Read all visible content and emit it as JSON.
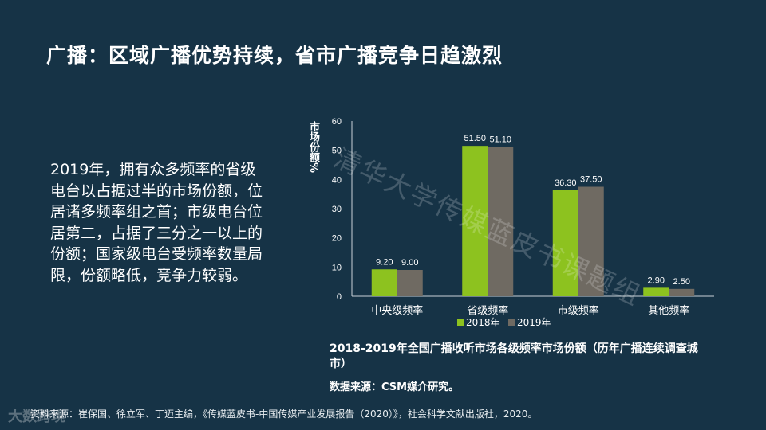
{
  "slide": {
    "title": "广播：区域广播优势持续，省市广播竞争日趋激烈",
    "body": "2019年，拥有众多频率的省级电台以占据过半的市场份额，位居诸多频率组之首；市级电台位居第二，占据了三分之一以上的份额；国家级电台受频率数量局限，份额略低，竞争力较弱。",
    "reference": "资料来源：崔保国、徐立军、丁迈主编，《传媒蓝皮书-中国传媒产业发展报告（2020）》，社会科学文献出版社，2020。",
    "watermark": "清华大学传媒蓝皮书课题组",
    "logo_text": "大数跨境"
  },
  "chart_data": {
    "type": "bar",
    "categories": [
      "中央级频率",
      "省级频率",
      "市级频率",
      "其他频率"
    ],
    "series": [
      {
        "name": "2018年",
        "values": [
          9.2,
          51.5,
          36.3,
          2.9
        ],
        "labels": [
          "9.20",
          "51.50",
          "36.30",
          "2.90"
        ],
        "color": "#8dc21f"
      },
      {
        "name": "2019年",
        "values": [
          9.0,
          51.1,
          37.5,
          2.5
        ],
        "labels": [
          "9.00",
          "51.10",
          "37.50",
          "2.50"
        ],
        "color": "#6f6a62"
      }
    ],
    "ylabel": "市场份额%",
    "ylim": [
      0,
      60
    ],
    "yticks": [
      0,
      10,
      20,
      30,
      40,
      50,
      60
    ],
    "grid": false,
    "legend_position": "bottom",
    "caption": "2018-2019年全国广播收听市场各级频率市场份额（历年广播连续调查城市）",
    "source": "数据来源：CSM媒介研究。"
  }
}
